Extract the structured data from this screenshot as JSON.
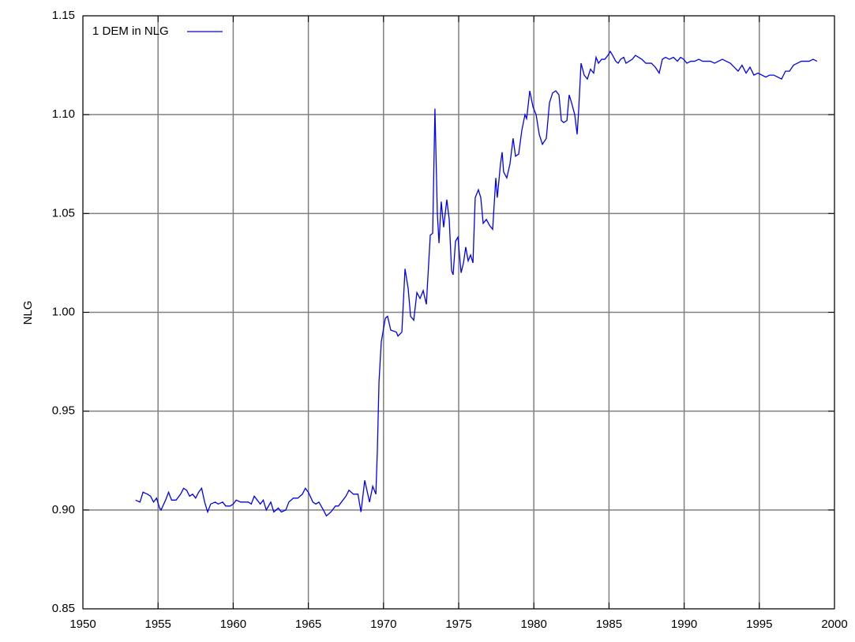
{
  "chart_data": {
    "type": "line",
    "y_label": "NLG",
    "x": [
      1953.5,
      1953.8,
      1954.0,
      1954.3,
      1954.5,
      1954.7,
      1954.9,
      1955.1,
      1955.2,
      1955.5,
      1955.7,
      1955.9,
      1956.2,
      1956.5,
      1956.7,
      1956.9,
      1957.1,
      1957.3,
      1957.5,
      1957.7,
      1957.9,
      1958.1,
      1958.3,
      1958.5,
      1958.8,
      1959.0,
      1959.3,
      1959.5,
      1959.8,
      1960.0,
      1960.2,
      1960.5,
      1960.8,
      1961.0,
      1961.2,
      1961.4,
      1961.6,
      1961.8,
      1962.0,
      1962.2,
      1962.5,
      1962.7,
      1963.0,
      1963.2,
      1963.5,
      1963.7,
      1964.0,
      1964.3,
      1964.6,
      1964.8,
      1965.0,
      1965.3,
      1965.5,
      1965.7,
      1966.0,
      1966.2,
      1966.5,
      1966.8,
      1967.0,
      1967.2,
      1967.5,
      1967.7,
      1968.0,
      1968.3,
      1968.5,
      1968.75,
      1969.07,
      1969.28,
      1969.49,
      1969.59,
      1969.7,
      1969.85,
      1970.12,
      1970.27,
      1970.48,
      1970.85,
      1970.96,
      1971.22,
      1971.43,
      1971.64,
      1971.8,
      1972.01,
      1972.22,
      1972.43,
      1972.64,
      1972.85,
      1973.11,
      1973.27,
      1973.42,
      1973.58,
      1973.69,
      1973.84,
      1974.0,
      1974.21,
      1974.37,
      1974.53,
      1974.63,
      1974.79,
      1974.95,
      1975.16,
      1975.32,
      1975.47,
      1975.63,
      1975.79,
      1975.95,
      1976.1,
      1976.31,
      1976.47,
      1976.63,
      1976.84,
      1977.05,
      1977.26,
      1977.47,
      1977.57,
      1977.78,
      1977.89,
      1977.99,
      1978.2,
      1978.41,
      1978.62,
      1978.78,
      1978.99,
      1979.2,
      1979.41,
      1979.52,
      1979.73,
      1979.94,
      1980.15,
      1980.36,
      1980.57,
      1980.83,
      1981.04,
      1981.25,
      1981.46,
      1981.67,
      1981.83,
      1981.99,
      1982.2,
      1982.35,
      1982.51,
      1982.72,
      1982.88,
      1982.98,
      1983.14,
      1983.35,
      1983.56,
      1983.77,
      1983.98,
      1984.14,
      1984.3,
      1984.51,
      1984.72,
      1984.93,
      1985.08,
      1985.24,
      1985.45,
      1985.61,
      1985.77,
      1985.98,
      1986.13,
      1986.34,
      1986.55,
      1986.76,
      1986.97,
      1987.18,
      1987.45,
      1987.82,
      1988.08,
      1988.34,
      1988.55,
      1988.76,
      1989.02,
      1989.29,
      1989.55,
      1989.76,
      1989.97,
      1990.18,
      1990.44,
      1990.7,
      1990.97,
      1991.23,
      1991.49,
      1991.75,
      1992.02,
      1992.28,
      1992.54,
      1992.8,
      1993.07,
      1993.33,
      1993.59,
      1993.85,
      1994.12,
      1994.38,
      1994.64,
      1994.91,
      1995.17,
      1995.43,
      1995.69,
      1995.96,
      1996.22,
      1996.48,
      1996.74,
      1997.01,
      1997.27,
      1997.53,
      1997.79,
      1998.06,
      1998.32,
      1998.58,
      1998.84
    ],
    "series": [
      {
        "name": "1 DEM in NLG",
        "color": "#0000ff",
        "values": [
          0.905,
          0.904,
          0.909,
          0.908,
          0.907,
          0.904,
          0.906,
          0.901,
          0.9,
          0.905,
          0.909,
          0.905,
          0.905,
          0.908,
          0.911,
          0.91,
          0.907,
          0.908,
          0.906,
          0.909,
          0.911,
          0.904,
          0.899,
          0.903,
          0.904,
          0.903,
          0.904,
          0.902,
          0.902,
          0.903,
          0.905,
          0.904,
          0.904,
          0.904,
          0.903,
          0.907,
          0.905,
          0.903,
          0.905,
          0.9,
          0.904,
          0.899,
          0.901,
          0.899,
          0.9,
          0.904,
          0.906,
          0.906,
          0.908,
          0.911,
          0.909,
          0.904,
          0.903,
          0.904,
          0.9,
          0.897,
          0.899,
          0.902,
          0.902,
          0.904,
          0.907,
          0.91,
          0.908,
          0.908,
          0.899,
          0.915,
          0.904,
          0.912,
          0.908,
          0.93,
          0.965,
          0.985,
          0.997,
          0.998,
          0.991,
          0.99,
          0.988,
          0.99,
          1.022,
          1.012,
          0.998,
          0.996,
          1.01,
          1.007,
          1.011,
          1.004,
          1.039,
          1.04,
          1.103,
          1.05,
          1.035,
          1.056,
          1.043,
          1.057,
          1.047,
          1.021,
          1.019,
          1.036,
          1.038,
          1.02,
          1.025,
          1.033,
          1.026,
          1.029,
          1.025,
          1.058,
          1.062,
          1.058,
          1.045,
          1.047,
          1.044,
          1.042,
          1.068,
          1.058,
          1.075,
          1.081,
          1.071,
          1.068,
          1.075,
          1.088,
          1.079,
          1.08,
          1.092,
          1.1,
          1.098,
          1.112,
          1.104,
          1.1,
          1.09,
          1.085,
          1.088,
          1.106,
          1.111,
          1.112,
          1.11,
          1.097,
          1.096,
          1.097,
          1.11,
          1.106,
          1.1,
          1.09,
          1.102,
          1.126,
          1.12,
          1.118,
          1.123,
          1.121,
          1.129,
          1.126,
          1.128,
          1.128,
          1.13,
          1.132,
          1.13,
          1.127,
          1.126,
          1.128,
          1.129,
          1.126,
          1.127,
          1.128,
          1.13,
          1.129,
          1.128,
          1.126,
          1.126,
          1.124,
          1.121,
          1.128,
          1.129,
          1.128,
          1.129,
          1.127,
          1.129,
          1.128,
          1.126,
          1.127,
          1.127,
          1.128,
          1.127,
          1.127,
          1.127,
          1.126,
          1.127,
          1.128,
          1.127,
          1.126,
          1.124,
          1.122,
          1.125,
          1.121,
          1.124,
          1.12,
          1.121,
          1.12,
          1.119,
          1.12,
          1.12,
          1.119,
          1.118,
          1.122,
          1.122,
          1.125,
          1.126,
          1.127,
          1.127,
          1.127,
          1.128,
          1.127
        ]
      }
    ],
    "xlim": [
      1950,
      2000
    ],
    "xticks": [
      1950,
      1955,
      1960,
      1965,
      1970,
      1975,
      1980,
      1985,
      1990,
      1995,
      2000
    ],
    "ylim": [
      0.85,
      1.15
    ],
    "yticks": [
      0.85,
      {
        "value": 0.9,
        "label": "0.90"
      },
      0.95,
      {
        "value": 1.0,
        "label": "1.00"
      },
      1.05,
      {
        "value": 1.1,
        "label": "1.10"
      },
      1.15
    ],
    "grid": true,
    "legend": "top-left"
  }
}
